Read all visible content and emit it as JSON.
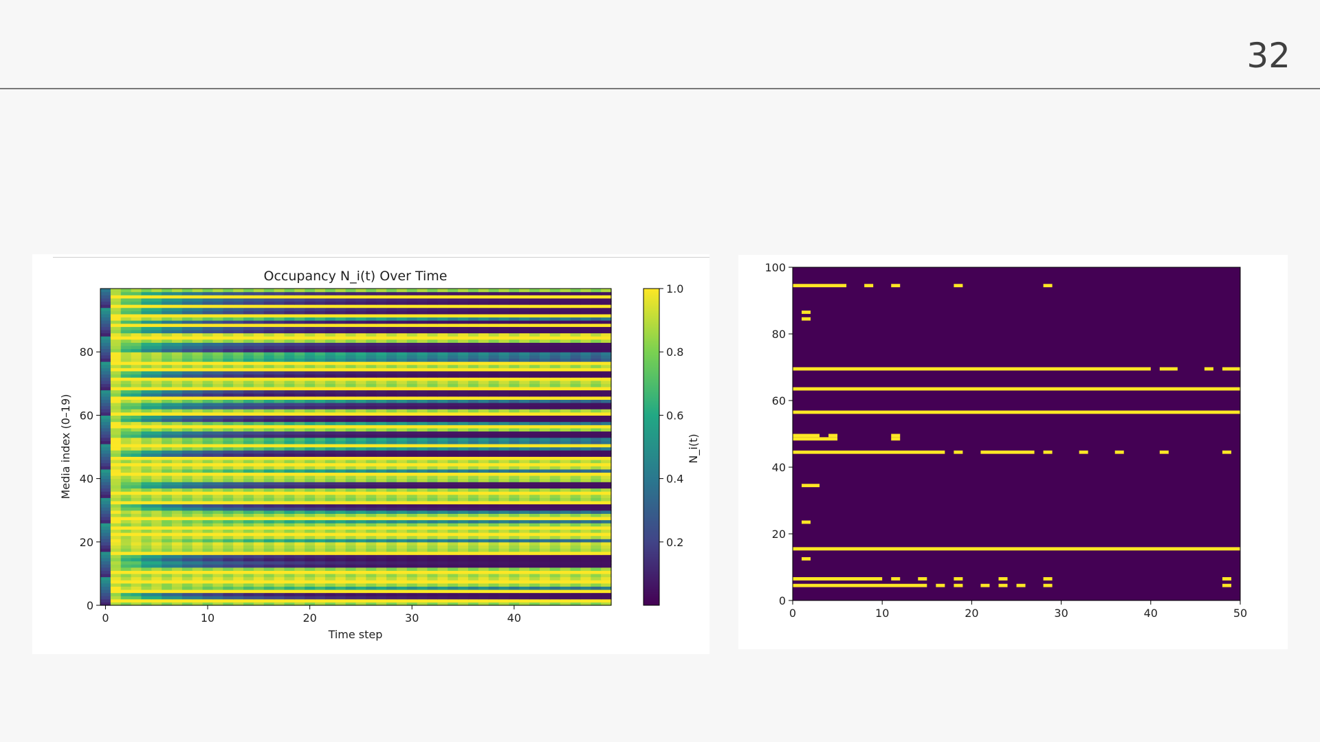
{
  "slide": {
    "page_number": "32"
  },
  "colors": {
    "low": "#440154",
    "high": "#fde725",
    "background": "#f7f7f7",
    "rule": "#777777"
  },
  "chart_data": [
    {
      "type": "heatmap",
      "title": "Occupancy N_i(t) Over Time",
      "xlabel": "Time step",
      "ylabel": "Media index (0–19)",
      "xlim": [
        0,
        50
      ],
      "ylim": [
        0,
        100
      ],
      "xticks": [
        "0",
        "10",
        "20",
        "30",
        "40"
      ],
      "yticks": [
        "0",
        "20",
        "40",
        "60",
        "80"
      ],
      "colormap": "viridis",
      "colorbar": {
        "label": "N_i(t)",
        "range": [
          0.0,
          1.0
        ],
        "ticks": [
          "0.2",
          "0.4",
          "0.6",
          "0.8",
          "1.0"
        ]
      },
      "rows_always_one": [
        1,
        4,
        7,
        10,
        16,
        22,
        24,
        27,
        32,
        35,
        41,
        44,
        46,
        50,
        56,
        60,
        65,
        68,
        71,
        74,
        76,
        84,
        88,
        91,
        94,
        97
      ],
      "rows_fast_decay": [
        2,
        3,
        12,
        13,
        14,
        15,
        30,
        31,
        37,
        38,
        47,
        48,
        53,
        54,
        58,
        59,
        62,
        63,
        66,
        67,
        72,
        73,
        80,
        81,
        82,
        86,
        87,
        89,
        92,
        93,
        95,
        96,
        98
      ],
      "rows_slow_decay": [
        5,
        20,
        26,
        29,
        42,
        49,
        51,
        52,
        57,
        64,
        77,
        78,
        79,
        90
      ],
      "alternating_period": 2
    },
    {
      "type": "heatmap",
      "xlim": [
        0,
        50
      ],
      "ylim": [
        0,
        100
      ],
      "xticks": [
        "0",
        "10",
        "20",
        "30",
        "40",
        "50"
      ],
      "yticks": [
        "0",
        "20",
        "40",
        "60",
        "80",
        "100"
      ],
      "colormap": "binary viridis",
      "segments": [
        {
          "y": 4,
          "x": [
            [
              0,
              15
            ],
            [
              16,
              17
            ],
            [
              18,
              19
            ],
            [
              21,
              22
            ],
            [
              23,
              24
            ],
            [
              25,
              26
            ],
            [
              28,
              29
            ],
            [
              48,
              49
            ]
          ]
        },
        {
          "y": 6,
          "x": [
            [
              0,
              10
            ],
            [
              11,
              12
            ],
            [
              14,
              15
            ],
            [
              18,
              19
            ],
            [
              23,
              24
            ],
            [
              28,
              29
            ],
            [
              48,
              49
            ]
          ]
        },
        {
          "y": 12,
          "x": [
            [
              1,
              2
            ]
          ]
        },
        {
          "y": 15,
          "x": [
            [
              0,
              50
            ]
          ]
        },
        {
          "y": 23,
          "x": [
            [
              1,
              2
            ]
          ]
        },
        {
          "y": 34,
          "x": [
            [
              1,
              3
            ]
          ]
        },
        {
          "y": 44,
          "x": [
            [
              0,
              17
            ],
            [
              18,
              19
            ],
            [
              21,
              27
            ],
            [
              28,
              29
            ],
            [
              32,
              33
            ],
            [
              36,
              37
            ],
            [
              41,
              42
            ],
            [
              48,
              49
            ]
          ]
        },
        {
          "y": 48,
          "x": [
            [
              0,
              5
            ],
            [
              11,
              12
            ]
          ]
        },
        {
          "y": 49,
          "x": [
            [
              0,
              3
            ],
            [
              4,
              5
            ],
            [
              11,
              12
            ]
          ]
        },
        {
          "y": 56,
          "x": [
            [
              0,
              50
            ]
          ]
        },
        {
          "y": 63,
          "x": [
            [
              0,
              50
            ]
          ]
        },
        {
          "y": 69,
          "x": [
            [
              0,
              40
            ],
            [
              41,
              43
            ],
            [
              46,
              47
            ],
            [
              48,
              50
            ]
          ]
        },
        {
          "y": 84,
          "x": [
            [
              1,
              2
            ]
          ]
        },
        {
          "y": 86,
          "x": [
            [
              1,
              2
            ]
          ]
        },
        {
          "y": 94,
          "x": [
            [
              0,
              6
            ],
            [
              8,
              9
            ],
            [
              11,
              12
            ],
            [
              18,
              19
            ],
            [
              28,
              29
            ]
          ]
        }
      ]
    }
  ]
}
